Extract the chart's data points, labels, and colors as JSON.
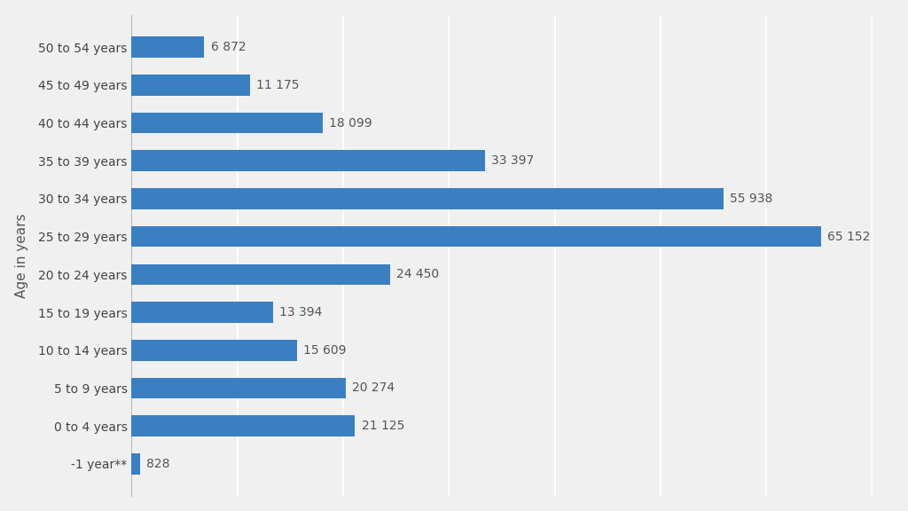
{
  "categories": [
    "-1 year**",
    "0 to 4 years",
    "5 to 9 years",
    "10 to 14 years",
    "15 to 19 years",
    "20 to 24 years",
    "25 to 29 years",
    "30 to 34 years",
    "35 to 39 years",
    "40 to 44 years",
    "45 to 49 years",
    "50 to 54 years"
  ],
  "values": [
    828,
    21125,
    20274,
    15609,
    13394,
    24450,
    65152,
    55938,
    33397,
    18099,
    11175,
    6872
  ],
  "labels": [
    "828",
    "21 125",
    "20 274",
    "15 609",
    "13 394",
    "24 450",
    "65 152",
    "55 938",
    "33 397",
    "18 099",
    "11 175",
    "6 872"
  ],
  "bar_color": "#3a7fc1",
  "background_color": "#f0f0f0",
  "plot_bg_color": "#f0f0f0",
  "ylabel": "Age in years",
  "xlim": [
    0,
    72000
  ],
  "bar_height": 0.55,
  "label_fontsize": 10,
  "tick_fontsize": 10,
  "ylabel_fontsize": 11,
  "grid_color": "#ffffff",
  "label_color": "#555555"
}
